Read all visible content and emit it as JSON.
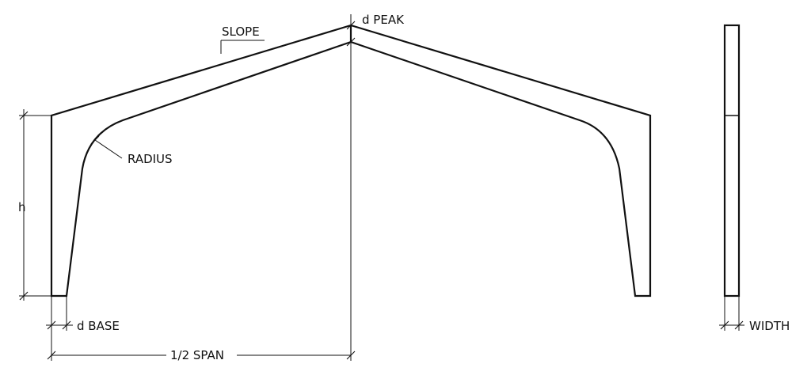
{
  "labels": {
    "slope": "SLOPE",
    "d_peak": "d PEAK",
    "radius": "RADIUS",
    "h": "h",
    "d_base": "d BASE",
    "half_span": "1/2 SPAN",
    "width": "WIDTH"
  },
  "colors": {
    "line": "#111111",
    "background": "#ffffff"
  }
}
